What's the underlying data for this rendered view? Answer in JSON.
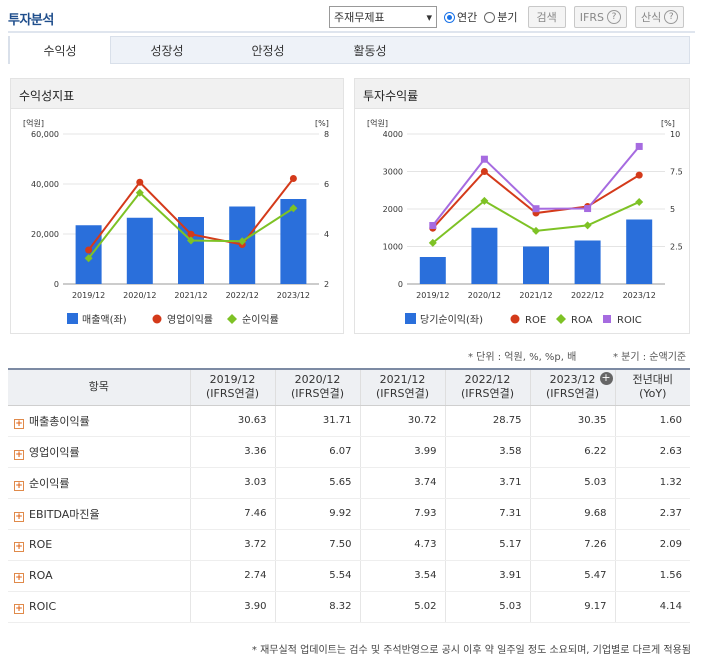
{
  "header": {
    "title": "투자분석"
  },
  "controls": {
    "select_value": "주재무제표",
    "radio_annual": "연간",
    "radio_quarter": "분기",
    "search": "검색",
    "ifrs": "IFRS",
    "formula": "산식"
  },
  "tabs": [
    "수익성",
    "성장성",
    "안정성",
    "활동성"
  ],
  "left_panel": {
    "title": "수익성지표",
    "legend": [
      "매출액(좌)",
      "영업이익률",
      "순이익률"
    ]
  },
  "right_panel": {
    "title": "투자수익률",
    "legend": [
      "당기순이익(좌)",
      "ROE",
      "ROA",
      "ROIC"
    ]
  },
  "chart_data": [
    {
      "type": "bar+line",
      "title": "수익성지표",
      "categories": [
        "2019/12",
        "2020/12",
        "2021/12",
        "2022/12",
        "2023/12"
      ],
      "left_axis": {
        "label": "[억원]",
        "ticks": [
          "0",
          "20,000",
          "40,000",
          "60,000"
        ],
        "range": [
          0,
          60000
        ]
      },
      "right_axis": {
        "label": "[%]",
        "ticks": [
          "2",
          "4",
          "6",
          "8"
        ],
        "range": [
          2,
          8
        ]
      },
      "series": [
        {
          "name": "매출액(좌)",
          "kind": "bar",
          "axis": "left",
          "color": "#2a6fdb",
          "values": [
            23500,
            26500,
            26800,
            31000,
            34000
          ]
        },
        {
          "name": "영업이익률",
          "kind": "line",
          "axis": "right",
          "color": "#d43a1a",
          "values": [
            3.36,
            6.07,
            3.99,
            3.58,
            6.22
          ]
        },
        {
          "name": "순이익률",
          "kind": "line",
          "axis": "right",
          "color": "#7ec225",
          "values": [
            3.03,
            5.65,
            3.74,
            3.71,
            5.03
          ]
        }
      ],
      "grid": true,
      "legend_position": "bottom"
    },
    {
      "type": "bar+line",
      "title": "투자수익률",
      "categories": [
        "2019/12",
        "2020/12",
        "2021/12",
        "2022/12",
        "2023/12"
      ],
      "left_axis": {
        "label": "[억원]",
        "ticks": [
          "0",
          "1000",
          "2000",
          "3000",
          "4000"
        ],
        "range": [
          0,
          4000
        ]
      },
      "right_axis": {
        "label": "[%]",
        "ticks": [
          "2.5",
          "5",
          "7.5",
          "10"
        ],
        "range": [
          0,
          10
        ]
      },
      "series": [
        {
          "name": "당기순이익(좌)",
          "kind": "bar",
          "axis": "left",
          "color": "#2a6fdb",
          "values": [
            720,
            1500,
            1000,
            1160,
            1720
          ]
        },
        {
          "name": "ROE",
          "kind": "line",
          "axis": "right",
          "color": "#d43a1a",
          "values": [
            3.72,
            7.5,
            4.73,
            5.17,
            7.26
          ]
        },
        {
          "name": "ROA",
          "kind": "line",
          "axis": "right",
          "color": "#7ec225",
          "values": [
            2.74,
            5.54,
            3.54,
            3.91,
            5.47
          ]
        },
        {
          "name": "ROIC",
          "kind": "line",
          "axis": "right",
          "color": "#a66be0",
          "values": [
            3.9,
            8.32,
            5.02,
            5.03,
            9.17
          ]
        }
      ],
      "grid": true,
      "legend_position": "bottom"
    }
  ],
  "notes": {
    "unit": "* 단위 : 억원, %, %p, 배",
    "quarter": "* 분기 : 순액기준"
  },
  "table": {
    "header_item": "항목",
    "columns": [
      [
        "2019/12",
        "(IFRS연결)"
      ],
      [
        "2020/12",
        "(IFRS연결)"
      ],
      [
        "2021/12",
        "(IFRS연결)"
      ],
      [
        "2022/12",
        "(IFRS연결)"
      ],
      [
        "2023/12",
        "(IFRS연결)"
      ],
      [
        "전년대비",
        "(YoY)"
      ]
    ],
    "rows": [
      {
        "label": "매출총이익률",
        "values": [
          "30.63",
          "31.71",
          "30.72",
          "28.75",
          "30.35",
          "1.60"
        ]
      },
      {
        "label": "영업이익률",
        "values": [
          "3.36",
          "6.07",
          "3.99",
          "3.58",
          "6.22",
          "2.63"
        ]
      },
      {
        "label": "순이익률",
        "values": [
          "3.03",
          "5.65",
          "3.74",
          "3.71",
          "5.03",
          "1.32"
        ]
      },
      {
        "label": "EBITDA마진율",
        "values": [
          "7.46",
          "9.92",
          "7.93",
          "7.31",
          "9.68",
          "2.37"
        ]
      },
      {
        "label": "ROE",
        "values": [
          "3.72",
          "7.50",
          "4.73",
          "5.17",
          "7.26",
          "2.09"
        ]
      },
      {
        "label": "ROA",
        "values": [
          "2.74",
          "5.54",
          "3.54",
          "3.91",
          "5.47",
          "1.56"
        ]
      },
      {
        "label": "ROIC",
        "values": [
          "3.90",
          "8.32",
          "5.02",
          "5.03",
          "9.17",
          "4.14"
        ]
      }
    ]
  },
  "footer": "* 재무실적 업데이트는 검수 및 주석반영으로 공시 이후 약 일주일 정도 소요되며, 기업별로 다르게 적용됨"
}
